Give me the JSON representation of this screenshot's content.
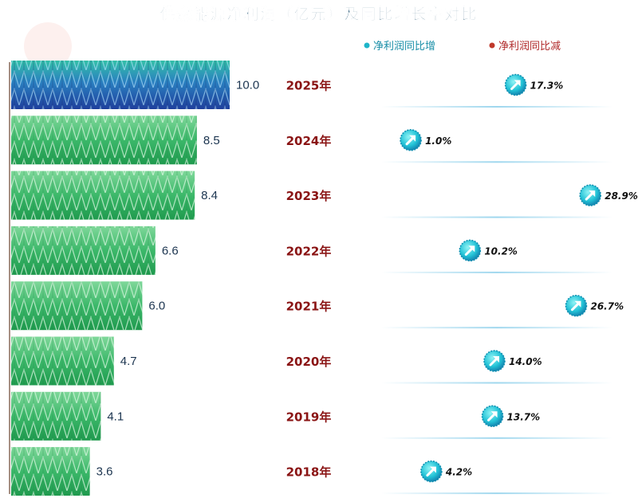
{
  "chart_data": {
    "type": "bar",
    "title": "佛燃能源净利润（亿元）及同比增长率对比",
    "legend": {
      "placement": "top-right",
      "items": [
        {
          "label": "净利润同比增",
          "color": "#1fb5c9"
        },
        {
          "label": "净利润同比减",
          "color": "#c0392b"
        }
      ]
    },
    "categories": [
      "2025年",
      "2024年",
      "2023年",
      "2022年",
      "2021年",
      "2020年",
      "2019年",
      "2018年"
    ],
    "series": [
      {
        "values": [
          10.0,
          8.5,
          8.4,
          6.6,
          6.0,
          4.7,
          4.1,
          3.6
        ],
        "value_labels": [
          "10.0",
          "8.5",
          "8.4",
          "6.6",
          "6.0",
          "4.7",
          "4.1",
          "3.6"
        ]
      },
      {
        "values": [
          17.3,
          1.0,
          28.9,
          10.2,
          26.7,
          14.0,
          13.7,
          4.2
        ],
        "value_labels": [
          "17.3%",
          "1.0%",
          "28.9%",
          "10.2%",
          "26.7%",
          "14.0%",
          "13.7%",
          "4.2%"
        ],
        "direction": [
          "up",
          "up",
          "up",
          "up",
          "up",
          "up",
          "up",
          "up"
        ]
      }
    ],
    "x_range_profit": [
      0,
      10.0
    ],
    "x_range_growth": [
      0,
      30
    ],
    "highlight_color": "#1f4fa8",
    "bar_color": "#3cb86a",
    "year_color": "#8a1414",
    "icon": "arrow-up-right-icon"
  }
}
